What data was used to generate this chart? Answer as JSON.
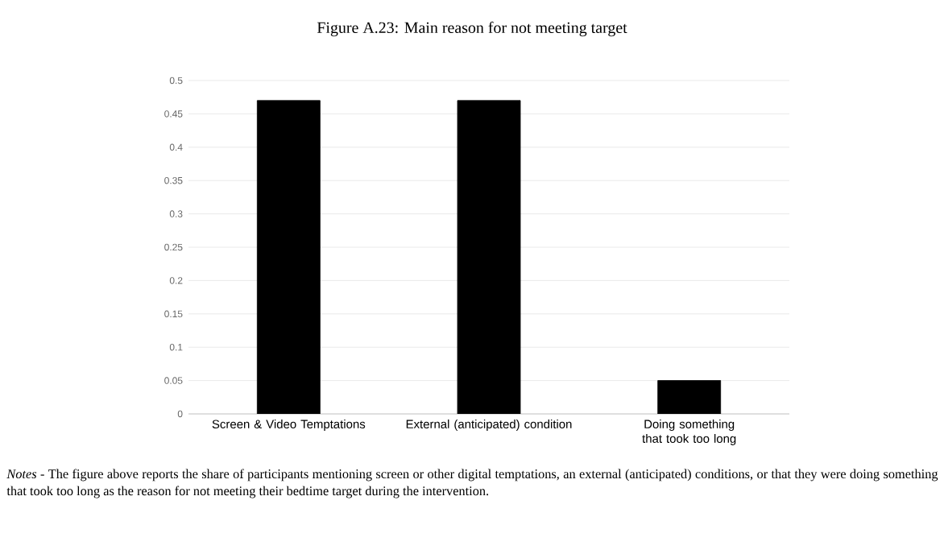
{
  "chart_data": {
    "type": "bar",
    "title": "Figure A.23: Main reason for not meeting target",
    "categories": [
      "Screen & Video Temptations",
      "External (anticipated) condition",
      "Doing something that took too long"
    ],
    "values": [
      0.47,
      0.47,
      0.05
    ],
    "color": "#000000",
    "ylim": [
      0,
      0.5
    ],
    "yticks": [
      0,
      0.05,
      0.1,
      0.15,
      0.2,
      0.25,
      0.3,
      0.35,
      0.4,
      0.45,
      0.5
    ],
    "grid": "y",
    "annotations": [
      "*Notes* -  The figure above reports the share of participants mentioning screen or other digital temptations, an external (anticipated) conditions, or that they were doing something that took too long as the reason for not meeting their bedtime target during the intervention."
    ]
  }
}
